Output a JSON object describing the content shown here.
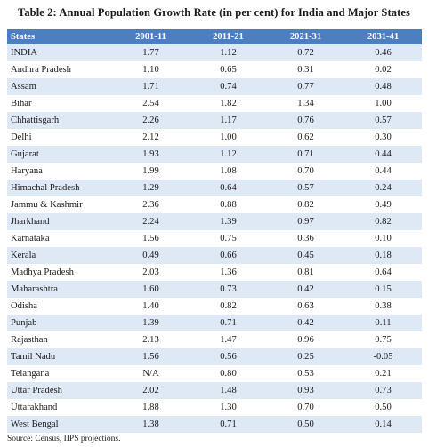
{
  "title": "Table 2: Annual Population Growth Rate (in per cent) for India and Major States",
  "headers": [
    "States",
    "2001-11",
    "2011-21",
    "2021-31",
    "2031-41"
  ],
  "rows": [
    [
      "INDIA",
      "1.77",
      "1.12",
      "0.72",
      "0.46"
    ],
    [
      "Andhra Pradesh",
      "1.10",
      "0.65",
      "0.31",
      "0.02"
    ],
    [
      "Assam",
      "1.71",
      "0.74",
      "0.77",
      "0.48"
    ],
    [
      "Bihar",
      "2.54",
      "1.82",
      "1.34",
      "1.00"
    ],
    [
      "Chhattisgarh",
      "2.26",
      "1.17",
      "0.76",
      "0.57"
    ],
    [
      "Delhi",
      "2.12",
      "1.00",
      "0.62",
      "0.30"
    ],
    [
      "Gujarat",
      "1.93",
      "1.12",
      "0.71",
      "0.44"
    ],
    [
      "Haryana",
      "1.99",
      "1.08",
      "0.70",
      "0.44"
    ],
    [
      "Himachal Pradesh",
      "1.29",
      "0.64",
      "0.57",
      "0.24"
    ],
    [
      "Jammu & Kashmir",
      "2.36",
      "0.88",
      "0.82",
      "0.49"
    ],
    [
      "Jharkhand",
      "2.24",
      "1.39",
      "0.97",
      "0.82"
    ],
    [
      "Karnataka",
      "1.56",
      "0.75",
      "0.36",
      "0.10"
    ],
    [
      "Kerala",
      "0.49",
      "0.66",
      "0.45",
      "0.18"
    ],
    [
      "Madhya Pradesh",
      "2.03",
      "1.36",
      "0.81",
      "0.64"
    ],
    [
      "Maharashtra",
      "1.60",
      "0.73",
      "0.42",
      "0.15"
    ],
    [
      "Odisha",
      "1.40",
      "0.82",
      "0.63",
      "0.38"
    ],
    [
      "Punjab",
      "1.39",
      "0.71",
      "0.42",
      "0.11"
    ],
    [
      "Rajasthan",
      "2.13",
      "1.47",
      "0.96",
      "0.75"
    ],
    [
      "Tamil Nadu",
      "1.56",
      "0.56",
      "0.25",
      "-0.05"
    ],
    [
      "Telangana",
      "N/A",
      "0.80",
      "0.53",
      "0.21"
    ],
    [
      "Uttar Pradesh",
      "2.02",
      "1.48",
      "0.93",
      "0.73"
    ],
    [
      "Uttarakhand",
      "1.88",
      "1.30",
      "0.70",
      "0.50"
    ],
    [
      "West Bengal",
      "1.38",
      "0.71",
      "0.50",
      "0.14"
    ]
  ],
  "source": "Source: Census,  IIPS projections.",
  "colors": {
    "header_bg": "#4d7fc0",
    "header_text": "#ffffff",
    "stripe": "#dfe8f5"
  }
}
